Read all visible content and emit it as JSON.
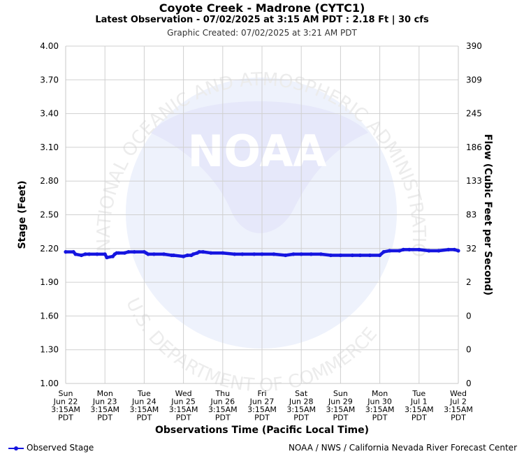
{
  "header": {
    "title": "Coyote Creek - Madrone (CYTC1)",
    "subtitle": "Latest Observation - 07/02/2025 at 3:15 AM PDT : 2.18 Ft | 30 cfs",
    "created": "Graphic Created: 07/02/2025 at 3:21 AM PDT"
  },
  "footer": {
    "legend_label": "Observed Stage",
    "credit": "NOAA / NWS / California Nevada River Forecast Center"
  },
  "watermark": {
    "logo_text": "NOAA",
    "ring_text_top": "NATIONAL OCEANIC AND ATMOSPHERIC ADMINISTRATION",
    "ring_text_bottom": "U.S. DEPARTMENT OF COMMERCE"
  },
  "colors": {
    "series": "#1515e0",
    "grid": "#d0d0d0",
    "watermark": "#e8ecfb"
  },
  "chart_data": {
    "type": "line",
    "ylabel": "Stage (Feet)",
    "y2label": "Flow (Cubic Feet per Second)",
    "xlabel": "Observations Time (Pacific Local Time)",
    "ylim": [
      1.0,
      4.0
    ],
    "yticks": [
      "4.00",
      "3.70",
      "3.40",
      "3.10",
      "2.80",
      "2.50",
      "2.20",
      "1.90",
      "1.60",
      "1.30",
      "1.00"
    ],
    "y2ticks": [
      "390",
      "309",
      "245",
      "186",
      "133",
      "83",
      "32",
      "2",
      "0",
      "0",
      "0"
    ],
    "xlim_days": [
      0,
      10
    ],
    "xticks": [
      [
        "Sun",
        "Jun 22",
        "3:15AM",
        "PDT"
      ],
      [
        "Mon",
        "Jun 23",
        "3:15AM",
        "PDT"
      ],
      [
        "Tue",
        "Jun 24",
        "3:15AM",
        "PDT"
      ],
      [
        "Wed",
        "Jun 25",
        "3:15AM",
        "PDT"
      ],
      [
        "Thu",
        "Jun 26",
        "3:15AM",
        "PDT"
      ],
      [
        "Fri",
        "Jun 27",
        "3:15AM",
        "PDT"
      ],
      [
        "Sat",
        "Jun 28",
        "3:15AM",
        "PDT"
      ],
      [
        "Sun",
        "Jun 29",
        "3:15AM",
        "PDT"
      ],
      [
        "Mon",
        "Jun 30",
        "3:15AM",
        "PDT"
      ],
      [
        "Tue",
        "Jul 1",
        "3:15AM",
        "PDT"
      ],
      [
        "Wed",
        "Jul 2",
        "3:15AM",
        "PDT"
      ]
    ],
    "grid": true,
    "legend": "bottom-left",
    "series": [
      {
        "name": "Observed Stage",
        "x": [
          0.0,
          0.2,
          0.25,
          0.4,
          0.5,
          0.6,
          0.8,
          1.0,
          1.05,
          1.2,
          1.25,
          1.3,
          1.35,
          1.5,
          1.6,
          1.75,
          2.0,
          2.05,
          2.1,
          2.25,
          2.5,
          2.7,
          2.75,
          3.0,
          3.1,
          3.2,
          3.25,
          3.35,
          3.4,
          3.5,
          3.7,
          4.0,
          4.3,
          4.5,
          4.8,
          5.0,
          5.3,
          5.6,
          5.8,
          6.0,
          6.25,
          6.5,
          6.75,
          7.0,
          7.3,
          7.5,
          7.75,
          8.0,
          8.1,
          8.25,
          8.5,
          8.6,
          8.75,
          9.0,
          9.25,
          9.5,
          9.75,
          9.9,
          10.0
        ],
        "y": [
          2.17,
          2.17,
          2.15,
          2.14,
          2.15,
          2.15,
          2.15,
          2.15,
          2.12,
          2.13,
          2.15,
          2.16,
          2.16,
          2.16,
          2.17,
          2.17,
          2.17,
          2.16,
          2.15,
          2.15,
          2.15,
          2.14,
          2.14,
          2.13,
          2.14,
          2.14,
          2.15,
          2.16,
          2.17,
          2.17,
          2.16,
          2.16,
          2.15,
          2.15,
          2.15,
          2.15,
          2.15,
          2.14,
          2.15,
          2.15,
          2.15,
          2.15,
          2.14,
          2.14,
          2.14,
          2.14,
          2.14,
          2.14,
          2.17,
          2.18,
          2.18,
          2.19,
          2.19,
          2.19,
          2.18,
          2.18,
          2.19,
          2.19,
          2.18
        ]
      }
    ]
  }
}
